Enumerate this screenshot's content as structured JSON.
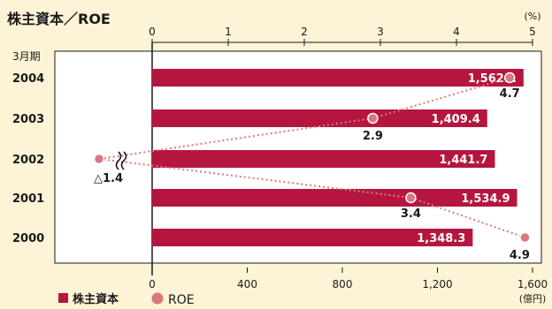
{
  "title": "株主資本／ROE",
  "colors": {
    "bar": "#b5163f",
    "roe_marker": "#d9787f",
    "roe_line": "#d9787f",
    "plot_bg": "#ffffff",
    "page_bg": "#fdf3d6"
  },
  "chart_data": {
    "type": "bar",
    "orientation": "horizontal",
    "category_label": "3月期",
    "categories": [
      "2004",
      "2003",
      "2002",
      "2001",
      "2000"
    ],
    "series": [
      {
        "name": "株主資本",
        "axis": "bottom",
        "values": [
          1562.1,
          1409.4,
          1441.7,
          1534.9,
          1348.3
        ],
        "labels": [
          "1,562.1",
          "1,409.4",
          "1,441.7",
          "1,534.9",
          "1,348.3"
        ]
      },
      {
        "name": "ROE",
        "type": "line",
        "axis": "top",
        "values": [
          4.7,
          2.9,
          -1.4,
          3.4,
          4.9
        ],
        "labels": [
          "4.7",
          "2.9",
          "△1.4",
          "3.4",
          "4.9"
        ],
        "axis_break_note": "2002 value is negative; shown left of zero with a break mark"
      }
    ],
    "bottom_axis": {
      "range": [
        0,
        1600
      ],
      "ticks": [
        0,
        400,
        800,
        1200,
        1600
      ],
      "tick_labels": [
        "0",
        "400",
        "800",
        "1,200",
        "1,600"
      ],
      "unit": "(億円)"
    },
    "top_axis": {
      "range": [
        0,
        5
      ],
      "ticks": [
        0,
        1,
        2,
        3,
        4,
        5
      ],
      "tick_labels": [
        "0",
        "1",
        "2",
        "3",
        "4",
        "5"
      ],
      "unit": "(%)"
    },
    "legend": {
      "placement": "bottom-left",
      "items": [
        {
          "name": "株主資本",
          "shape": "square"
        },
        {
          "name": "ROE",
          "shape": "circle"
        }
      ]
    }
  }
}
